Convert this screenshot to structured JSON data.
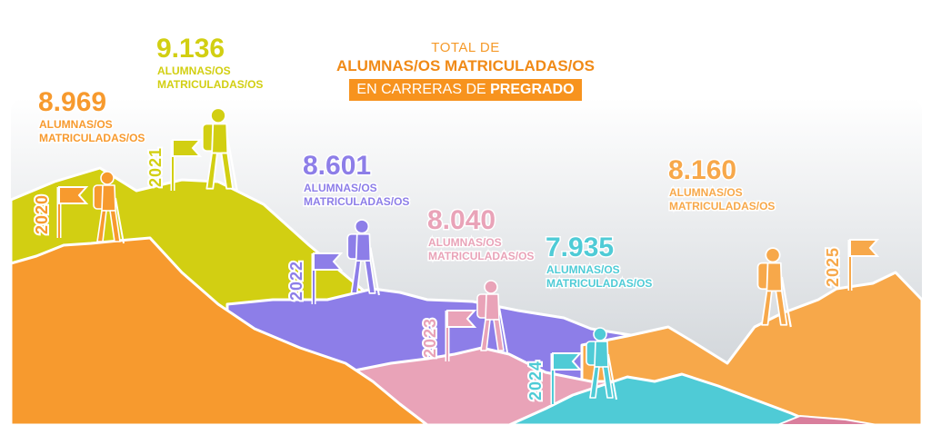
{
  "title": {
    "line1": "TOTAL DE",
    "line2": "ALUMNAS/OS MATRICULADAS/OS",
    "line3_prefix": "EN CARRERAS DE ",
    "line3_bold": "PREGRADO"
  },
  "colors": {
    "2020": "#f79a2e",
    "2021": "#d2cf12",
    "2022": "#8d7ee8",
    "2023": "#e9a3b8",
    "2024": "#4fcbd6",
    "2025": "#f7a84a"
  },
  "chart_data": {
    "type": "bar",
    "categories": [
      "2020",
      "2021",
      "2022",
      "2023",
      "2024",
      "2025"
    ],
    "values": [
      8969,
      9136,
      8601,
      8040,
      7935,
      8160
    ],
    "value_labels": [
      "8.969",
      "9.136",
      "8.601",
      "8.040",
      "7.935",
      "8.160"
    ],
    "sublabel_line1": "ALUMNAS/OS",
    "sublabel_line2": "MATRICULADAS/OS"
  }
}
